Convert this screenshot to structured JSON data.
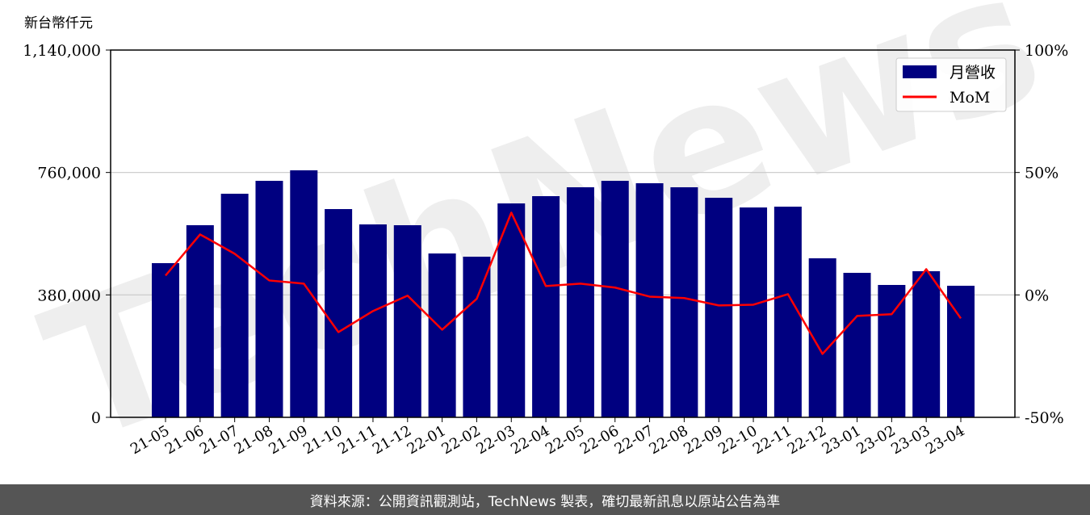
{
  "chart_data": {
    "type": "bar",
    "ylabel": "新台幣仟元",
    "categories": [
      "21-05",
      "21-06",
      "21-07",
      "21-08",
      "21-09",
      "21-10",
      "21-11",
      "21-12",
      "22-01",
      "22-02",
      "22-03",
      "22-04",
      "22-05",
      "22-06",
      "22-07",
      "22-08",
      "22-09",
      "22-10",
      "22-11",
      "22-12",
      "23-01",
      "23-02",
      "23-03",
      "23-04"
    ],
    "series": [
      {
        "name": "月營收",
        "type": "bar",
        "axis": "left",
        "color": "#000080",
        "values": [
          478600,
          596300,
          694000,
          734100,
          766700,
          646400,
          598800,
          596300,
          508600,
          498600,
          664000,
          686500,
          714100,
          734100,
          726600,
          714100,
          681500,
          651400,
          653900,
          493600,
          448500,
          410900,
          453500,
          408400
        ]
      },
      {
        "name": "MoM",
        "type": "line",
        "axis": "right",
        "color": "#ff0000",
        "values": [
          7.9,
          24.7,
          16.8,
          5.9,
          4.6,
          -15.2,
          -6.6,
          -0.3,
          -14.2,
          -1.6,
          33.6,
          3.6,
          4.6,
          3.0,
          -0.7,
          -1.3,
          -4.3,
          -4.0,
          0.3,
          -24.1,
          -8.6,
          -7.9,
          10.5,
          -9.6
        ]
      }
    ],
    "ylim": [
      0,
      1140000
    ],
    "yticks": [
      "0",
      "380,000",
      "760,000",
      "1,140,000"
    ],
    "ytick_values": [
      0,
      380000,
      760000,
      1140000
    ],
    "y2lim": [
      -50,
      100
    ],
    "y2ticks": [
      "-50%",
      "0%",
      "50%",
      "100%"
    ],
    "y2tick_values": [
      -50,
      0,
      50,
      100
    ],
    "grid": "horizontal",
    "legend_position": "top-right"
  },
  "watermark": "TechNews",
  "footer": "資料來源：公開資訊觀測站，TechNews 製表，確切最新訊息以原站公告為準"
}
